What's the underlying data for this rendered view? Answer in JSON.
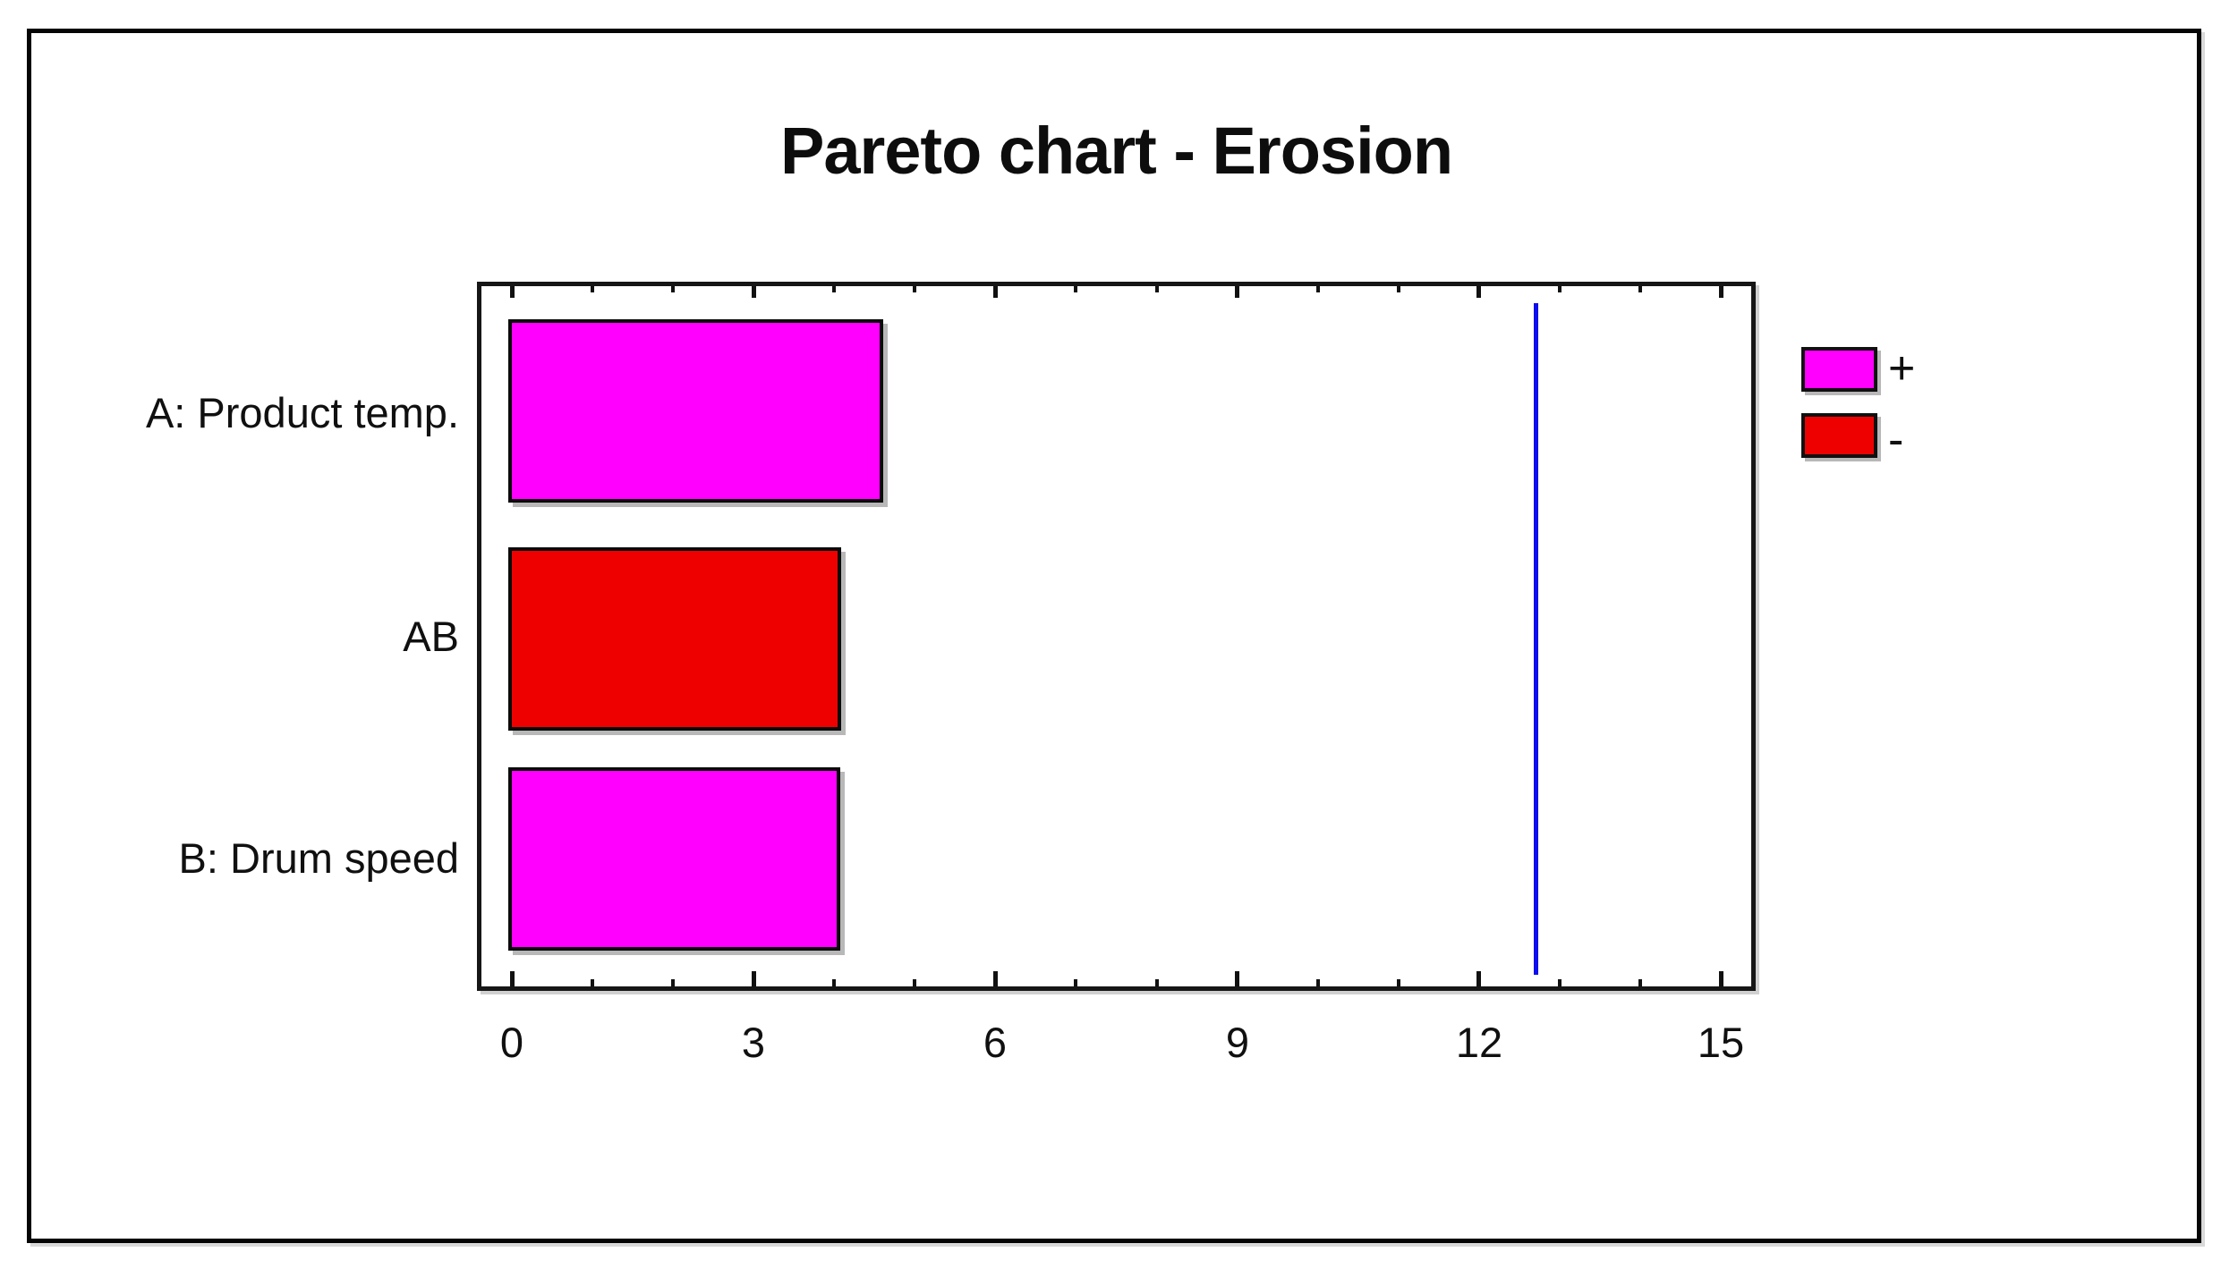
{
  "chart_data": {
    "type": "bar",
    "orientation": "horizontal",
    "title": "Pareto chart - Erosion",
    "categories": [
      "A: Product temp.",
      "AB",
      "B: Drum speed"
    ],
    "values": [
      4.56,
      4.04,
      4.03
    ],
    "signs": [
      "+",
      "-",
      "+"
    ],
    "bar_colors": {
      "plus": "#ff00ff",
      "minus": "#ee0000"
    },
    "x_axis": {
      "min": 0,
      "max": 15,
      "major_step": 3,
      "minor_step": 1,
      "tick_labels": [
        "0",
        "3",
        "6",
        "9",
        "12",
        "15"
      ]
    },
    "reference_line": {
      "value": 12.706,
      "color": "#0d0dee"
    },
    "legend": [
      {
        "label": "+",
        "color": "#ff00ff"
      },
      {
        "label": "-",
        "color": "#ee0000"
      }
    ],
    "grid": false,
    "legend_position": "right-outside"
  }
}
